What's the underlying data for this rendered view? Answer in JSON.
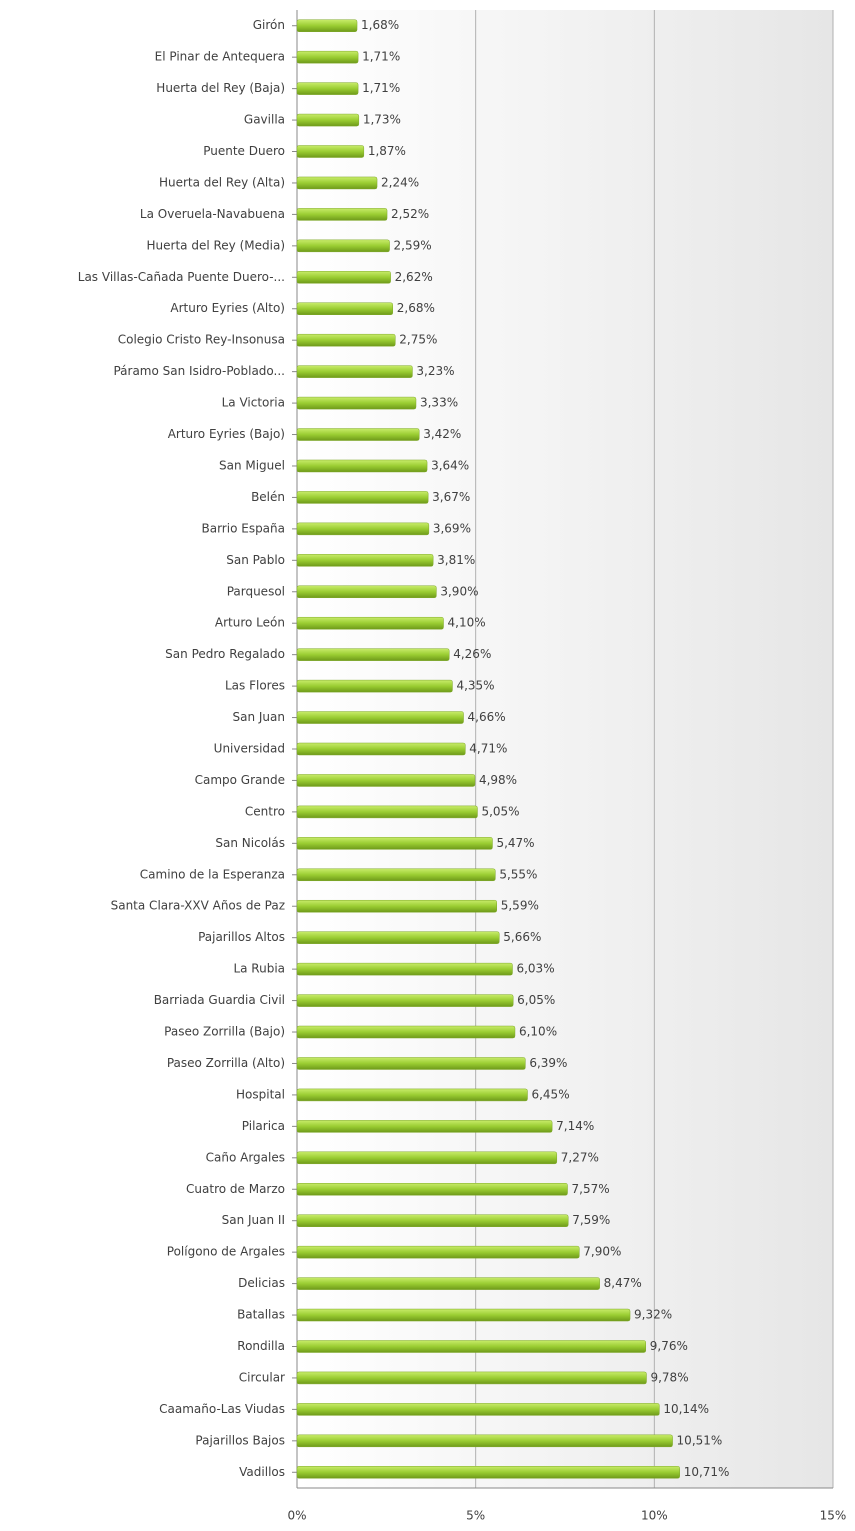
{
  "chart_data": {
    "type": "bar",
    "orientation": "horizontal",
    "color": "#9acd32",
    "categories": [
      "Girón",
      "El Pinar de Antequera",
      "Huerta del Rey (Baja)",
      "Gavilla",
      "Puente Duero",
      "Huerta del Rey (Alta)",
      "La Overuela-Navabuena",
      "Huerta del Rey (Media)",
      "Las Villas-Cañada Puente Duero-...",
      "Arturo Eyries (Alto)",
      "Colegio Cristo Rey-Insonusa",
      "Páramo San Isidro-Poblado...",
      "La Victoria",
      "Arturo Eyries (Bajo)",
      "San Miguel",
      "Belén",
      "Barrio España",
      "San Pablo",
      "Parquesol",
      "Arturo León",
      "San Pedro Regalado",
      "Las Flores",
      "San Juan",
      "Universidad",
      "Campo Grande",
      "Centro",
      "San Nicolás",
      "Camino de la Esperanza",
      "Santa Clara-XXV Años de Paz",
      "Pajarillos Altos",
      "La Rubia",
      "Barriada Guardia Civil",
      "Paseo Zorrilla (Bajo)",
      "Paseo Zorrilla (Alto)",
      "Hospital",
      "Pilarica",
      "Caño Argales",
      "Cuatro de Marzo",
      "San Juan II",
      "Polígono de Argales",
      "Delicias",
      "Batallas",
      "Rondilla",
      "Circular",
      "Caamaño-Las Viudas",
      "Pajarillos Bajos",
      "Vadillos"
    ],
    "values": [
      1.68,
      1.71,
      1.71,
      1.73,
      1.87,
      2.24,
      2.52,
      2.59,
      2.62,
      2.68,
      2.75,
      3.23,
      3.33,
      3.42,
      3.64,
      3.67,
      3.69,
      3.81,
      3.9,
      4.1,
      4.26,
      4.35,
      4.66,
      4.71,
      4.98,
      5.05,
      5.47,
      5.55,
      5.59,
      5.66,
      6.03,
      6.05,
      6.1,
      6.39,
      6.45,
      7.14,
      7.27,
      7.57,
      7.59,
      7.9,
      8.47,
      9.32,
      9.76,
      9.78,
      10.14,
      10.51,
      10.71
    ],
    "value_labels": [
      "1,68%",
      "1,71%",
      "1,71%",
      "1,73%",
      "1,87%",
      "2,24%",
      "2,52%",
      "2,59%",
      "2,62%",
      "2,68%",
      "2,75%",
      "3,23%",
      "3,33%",
      "3,42%",
      "3,64%",
      "3,67%",
      "3,69%",
      "3,81%",
      "3,90%",
      "4,10%",
      "4,26%",
      "4,35%",
      "4,66%",
      "4,71%",
      "4,98%",
      "5,05%",
      "5,47%",
      "5,55%",
      "5,59%",
      "5,66%",
      "6,03%",
      "6,05%",
      "6,10%",
      "6,39%",
      "6,45%",
      "7,14%",
      "7,27%",
      "7,57%",
      "7,59%",
      "7,90%",
      "8,47%",
      "9,32%",
      "9,76%",
      "9,78%",
      "10,14%",
      "10,51%",
      "10,71%"
    ],
    "xlim": [
      0,
      15
    ],
    "xticks": [
      {
        "value": 0,
        "label": "0%"
      },
      {
        "value": 5,
        "label": "5%"
      },
      {
        "value": 10,
        "label": "10%"
      },
      {
        "value": 15,
        "label": "15%"
      }
    ],
    "grid": true
  }
}
